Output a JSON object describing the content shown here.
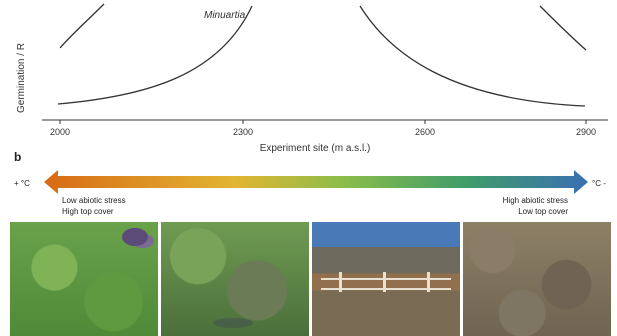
{
  "panel_a": {
    "ylabel": "Germination / R",
    "xlabel": "Experiment site (m a.s.l.)",
    "annotation": "Minuartia",
    "ticks": [
      "2000",
      "2300",
      "2600",
      "2900"
    ]
  },
  "panel_b": {
    "label": "b",
    "left_sign": "+ °C",
    "right_sign": "°C -",
    "left_line1": "Low abiotic stress",
    "left_line2": "High top cover",
    "right_line1": "High abiotic stress",
    "right_line2": "Low top cover",
    "arrow_colors": [
      "#d86a16",
      "#e2b532",
      "#8bbd4a",
      "#3f9c6a",
      "#3a6fb3"
    ]
  },
  "photos": [
    {
      "description_icon": "grass-plot-photo"
    },
    {
      "description_icon": "grass-plot-photo"
    },
    {
      "description_icon": "fenced-site-photo"
    },
    {
      "description_icon": "rocky-plot-photo"
    }
  ]
}
